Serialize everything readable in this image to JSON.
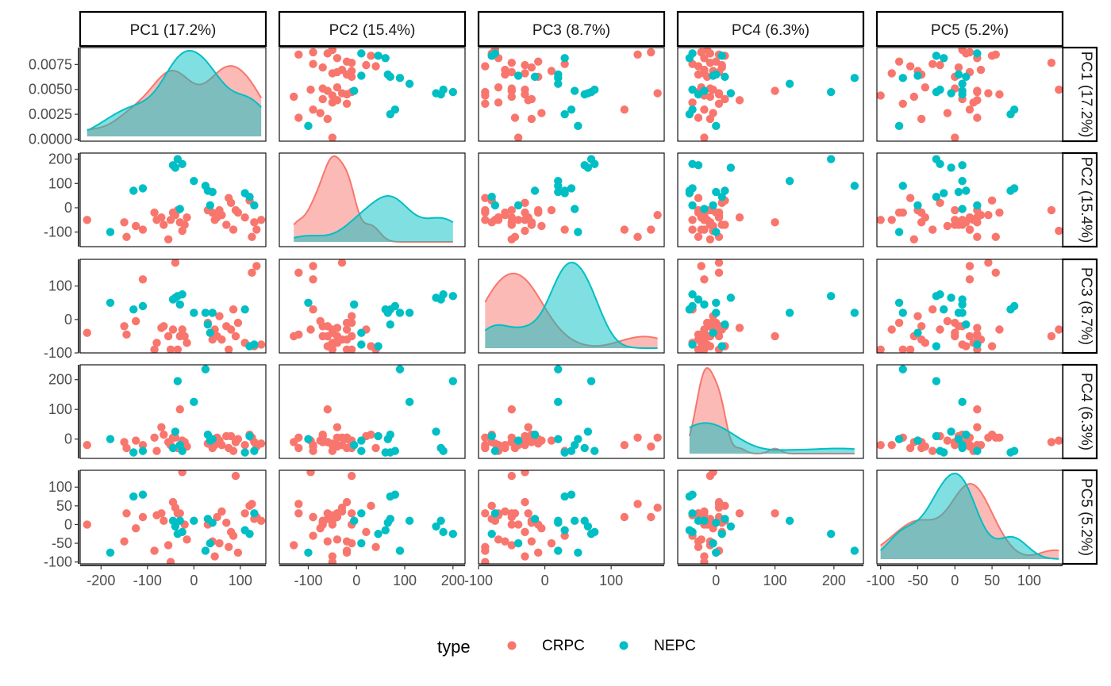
{
  "chart_data": {
    "type": "scatter",
    "variables": [
      "PC1 (17.2%)",
      "PC2 (15.4%)",
      "PC3 (8.7%)",
      "PC4 (6.3%)",
      "PC5 (5.2%)"
    ],
    "axes": {
      "PC1": {
        "range": [
          -245,
          155
        ],
        "ticks": [
          -200,
          -100,
          0,
          100
        ],
        "tick_labels": [
          "-200",
          "-100",
          "0",
          "100"
        ]
      },
      "PC2": {
        "range": [
          -160,
          225
        ],
        "ticks": [
          -100,
          0,
          100,
          200
        ],
        "tick_labels": [
          "-100",
          "0",
          "100",
          "200"
        ]
      },
      "PC3": {
        "range": [
          -100,
          180
        ],
        "ticks": [
          -100,
          0,
          100
        ],
        "tick_labels": [
          "-100",
          "0",
          "100"
        ]
      },
      "PC4": {
        "range": [
          -65,
          250
        ],
        "ticks": [
          0,
          100,
          200
        ],
        "tick_labels": [
          "0",
          "100",
          "200"
        ]
      },
      "PC5": {
        "range": [
          -105,
          145
        ],
        "ticks": [
          -100,
          -50,
          0,
          50,
          100
        ],
        "tick_labels": [
          "-100",
          "-50",
          "0",
          "50",
          "100"
        ]
      }
    },
    "density_axis": {
      "range": [
        -0.0002,
        0.0092
      ],
      "ticks": [
        0,
        0.0025,
        0.005,
        0.0075
      ],
      "tick_labels": [
        "0.0000",
        "0.0025",
        "0.0050",
        "0.0075"
      ]
    },
    "legend": {
      "title": "type",
      "position": "bottom"
    },
    "series": [
      {
        "name": "CRPC",
        "color": "#F8766D",
        "points": [
          [
            -230,
            -50,
            -40,
            -20,
            0
          ],
          [
            -150,
            -60,
            -20,
            -10,
            -45
          ],
          [
            -145,
            -120,
            -45,
            -30,
            30
          ],
          [
            -125,
            -75,
            -5,
            -5,
            -10
          ],
          [
            -110,
            -90,
            120,
            -20,
            20
          ],
          [
            -85,
            -20,
            -90,
            5,
            -70
          ],
          [
            -80,
            -50,
            -70,
            -40,
            25
          ],
          [
            -70,
            -40,
            -25,
            40,
            30
          ],
          [
            -65,
            -70,
            -20,
            15,
            10
          ],
          [
            -55,
            -130,
            -50,
            -10,
            -55
          ],
          [
            -50,
            -50,
            -90,
            -20,
            -100
          ],
          [
            -45,
            -20,
            -30,
            5,
            60
          ],
          [
            -40,
            -30,
            170,
            5,
            45
          ],
          [
            -35,
            -10,
            -90,
            -30,
            30
          ],
          [
            -30,
            -60,
            -50,
            100,
            30
          ],
          [
            -25,
            -95,
            -30,
            -5,
            140
          ],
          [
            -20,
            -70,
            -50,
            -10,
            0
          ],
          [
            -15,
            -40,
            -70,
            -25,
            -40
          ],
          [
            30,
            -10,
            -10,
            -15,
            0
          ],
          [
            40,
            -20,
            -60,
            -30,
            -45
          ],
          [
            45,
            -50,
            -30,
            -20,
            -85
          ],
          [
            50,
            -40,
            -50,
            5,
            20
          ],
          [
            55,
            -10,
            10,
            -5,
            -50
          ],
          [
            60,
            -30,
            -60,
            -20,
            35
          ],
          [
            70,
            -70,
            -20,
            10,
            5
          ],
          [
            75,
            40,
            -90,
            -30,
            -60
          ],
          [
            80,
            20,
            -30,
            10,
            -20
          ],
          [
            85,
            -90,
            30,
            -40,
            -30
          ],
          [
            90,
            -10,
            -50,
            -10,
            130
          ],
          [
            95,
            -20,
            -10,
            0,
            -75
          ],
          [
            110,
            -40,
            -70,
            -20,
            30
          ],
          [
            120,
            30,
            -80,
            15,
            50
          ],
          [
            125,
            -120,
            140,
            5,
            55
          ],
          [
            130,
            -60,
            -80,
            -10,
            15
          ],
          [
            135,
            -90,
            160,
            -25,
            20
          ],
          [
            145,
            -50,
            -75,
            -15,
            10
          ]
        ]
      },
      {
        "name": "NEPC",
        "color": "#00BFC4",
        "points": [
          [
            -180,
            -100,
            50,
            0,
            -75
          ],
          [
            -130,
            70,
            30,
            -45,
            75
          ],
          [
            -110,
            80,
            40,
            -40,
            80
          ],
          [
            -45,
            175,
            60,
            -30,
            10
          ],
          [
            -40,
            165,
            65,
            25,
            -5
          ],
          [
            -35,
            200,
            70,
            195,
            -25
          ],
          [
            -30,
            -5,
            45,
            -20,
            10
          ],
          [
            -25,
            180,
            75,
            -40,
            -20
          ],
          [
            0,
            110,
            20,
            125,
            10
          ],
          [
            25,
            90,
            20,
            235,
            -70
          ],
          [
            30,
            70,
            -15,
            15,
            15
          ],
          [
            35,
            10,
            -40,
            -5,
            -50
          ],
          [
            40,
            65,
            20,
            0,
            5
          ],
          [
            110,
            60,
            30,
            -45,
            -15
          ],
          [
            120,
            45,
            -80,
            10,
            -25
          ],
          [
            130,
            10,
            -75,
            -40,
            30
          ]
        ]
      }
    ]
  }
}
